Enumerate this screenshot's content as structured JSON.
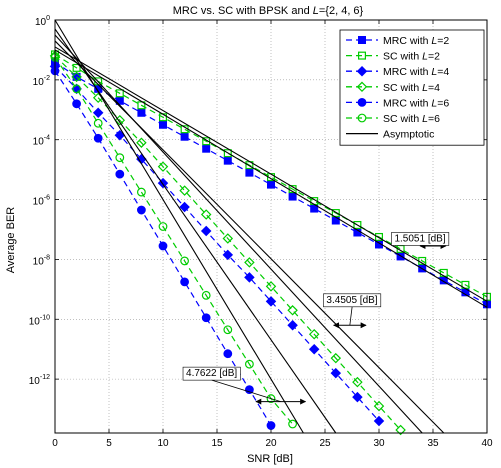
{
  "chart_data": {
    "type": "line",
    "title": "MRC vs. SC with BPSK and L={2, 4, 6}",
    "xlabel": "SNR [dB]",
    "ylabel": "Average BER",
    "xlim": [
      0,
      40
    ],
    "ylim_log10": [
      -13.8,
      0
    ],
    "y_scale": "log",
    "grid": "on (dotted)",
    "legend_position": "top-right",
    "x_ticks": [
      "0",
      "5",
      "10",
      "15",
      "20",
      "25",
      "30",
      "35",
      "40"
    ],
    "y_ticks": [
      {
        "base": "10",
        "exp": "0",
        "value": 0
      },
      {
        "base": "10",
        "exp": "-2",
        "value": -2
      },
      {
        "base": "10",
        "exp": "-4",
        "value": -4
      },
      {
        "base": "10",
        "exp": "-6",
        "value": -6
      },
      {
        "base": "10",
        "exp": "-8",
        "value": -8
      },
      {
        "base": "10",
        "exp": "-10",
        "value": -10
      },
      {
        "base": "10",
        "exp": "-12",
        "value": -12
      }
    ],
    "series": [
      {
        "name": "MRC with L=2",
        "legend_prefix": "MRC with ",
        "legend_var": "L",
        "legend_suffix": "=2",
        "color": "#0000ff",
        "dash": "6,4",
        "marker": "square-filled",
        "x": [
          0,
          2,
          4,
          6,
          8,
          10,
          12,
          14,
          16,
          18,
          20,
          22,
          24,
          26,
          28,
          30,
          32,
          34,
          36,
          38,
          40
        ],
        "log10_y": [
          -1.4,
          -1.9,
          -2.3,
          -2.7,
          -3.1,
          -3.5,
          -3.9,
          -4.3,
          -4.7,
          -5.1,
          -5.5,
          -5.9,
          -6.3,
          -6.7,
          -7.1,
          -7.5,
          -7.9,
          -8.3,
          -8.7,
          -9.1,
          -9.5
        ]
      },
      {
        "name": "SC with L=2",
        "legend_prefix": "SC with ",
        "legend_var": "L",
        "legend_suffix": "=2",
        "color": "#00cc00",
        "dash": "6,4",
        "marker": "square-open",
        "x": [
          0,
          2,
          4,
          6,
          8,
          10,
          12,
          14,
          16,
          18,
          20,
          22,
          24,
          26,
          28,
          30,
          32,
          34,
          36,
          38,
          40
        ],
        "log10_y": [
          -1.15,
          -1.6,
          -2.05,
          -2.45,
          -2.85,
          -3.25,
          -3.65,
          -4.05,
          -4.45,
          -4.85,
          -5.25,
          -5.65,
          -6.05,
          -6.45,
          -6.85,
          -7.25,
          -7.65,
          -8.05,
          -8.45,
          -8.85,
          -9.25
        ]
      },
      {
        "name": "MRC with L=4",
        "legend_prefix": "MRC with ",
        "legend_var": "L",
        "legend_suffix": "=4",
        "color": "#0000ff",
        "dash": "6,4",
        "marker": "diamond-filled",
        "x": [
          0,
          2,
          4,
          6,
          8,
          10,
          12,
          14,
          16,
          18,
          20,
          22,
          24,
          26,
          28,
          30
        ],
        "log10_y": [
          -1.55,
          -2.3,
          -3.1,
          -3.85,
          -4.65,
          -5.45,
          -6.25,
          -7.05,
          -7.85,
          -8.6,
          -9.4,
          -10.2,
          -11.0,
          -11.8,
          -12.6,
          -13.4
        ]
      },
      {
        "name": "SC with L=4",
        "legend_prefix": "SC with ",
        "legend_var": "L",
        "legend_suffix": "=4",
        "color": "#00cc00",
        "dash": "6,4",
        "marker": "diamond-open",
        "x": [
          0,
          2,
          4,
          6,
          8,
          10,
          12,
          14,
          16,
          18,
          20,
          22,
          24,
          26,
          28,
          30,
          32
        ],
        "log10_y": [
          -1.2,
          -1.9,
          -2.6,
          -3.35,
          -4.1,
          -4.9,
          -5.7,
          -6.5,
          -7.3,
          -8.1,
          -8.9,
          -9.7,
          -10.5,
          -11.3,
          -12.1,
          -12.9,
          -13.7
        ]
      },
      {
        "name": "MRC with L=6",
        "legend_prefix": "MRC with ",
        "legend_var": "L",
        "legend_suffix": "=6",
        "color": "#0000ff",
        "dash": "6,4",
        "marker": "circle-filled",
        "x": [
          0,
          2,
          4,
          6,
          8,
          10,
          12,
          14,
          16,
          18,
          20
        ],
        "log10_y": [
          -1.7,
          -2.8,
          -3.95,
          -5.15,
          -6.35,
          -7.55,
          -8.75,
          -9.95,
          -11.15,
          -12.35,
          -13.55
        ]
      },
      {
        "name": "SC with L=6",
        "legend_prefix": "SC with ",
        "legend_var": "L",
        "legend_suffix": "=6",
        "color": "#00cc00",
        "dash": "6,4",
        "marker": "circle-open",
        "x": [
          0,
          2,
          4,
          6,
          8,
          10,
          12,
          14,
          16,
          18,
          20,
          22,
          24
        ],
        "log10_y": [
          -1.25,
          -2.3,
          -3.45,
          -4.6,
          -5.75,
          -6.9,
          -8.05,
          -9.2,
          -10.35,
          -11.5,
          -12.65,
          -13.5,
          -13.9
        ]
      },
      {
        "name": "Asymptotic",
        "legend_prefix": "Asymptotic",
        "legend_var": "",
        "legend_suffix": "",
        "color": "#000000",
        "dash": "",
        "marker": "none",
        "segments": [
          {
            "x": [
              0,
              40
            ],
            "log10_y": [
              -0.9,
              -9.4
            ]
          },
          {
            "x": [
              0,
              40
            ],
            "log10_y": [
              -1.0,
              -9.6
            ]
          },
          {
            "x": [
              0,
              34
            ],
            "log10_y": [
              -0.5,
              -13.8
            ]
          },
          {
            "x": [
              0,
              36
            ],
            "log10_y": [
              -0.7,
              -13.8
            ]
          },
          {
            "x": [
              0,
              23
            ],
            "log10_y": [
              0,
              -13.8
            ]
          },
          {
            "x": [
              0,
              26
            ],
            "log10_y": [
              -0.3,
              -13.8
            ]
          }
        ]
      }
    ],
    "annotations": [
      {
        "text": "1.5051 [dB]",
        "x": 35,
        "log10_y": -7.4
      },
      {
        "text": "3.4505 [dB]",
        "x": 27.3,
        "log10_y": -9.5
      },
      {
        "text": "4.7622 [dB]",
        "x": 18,
        "log10_y": -11.9
      }
    ]
  }
}
